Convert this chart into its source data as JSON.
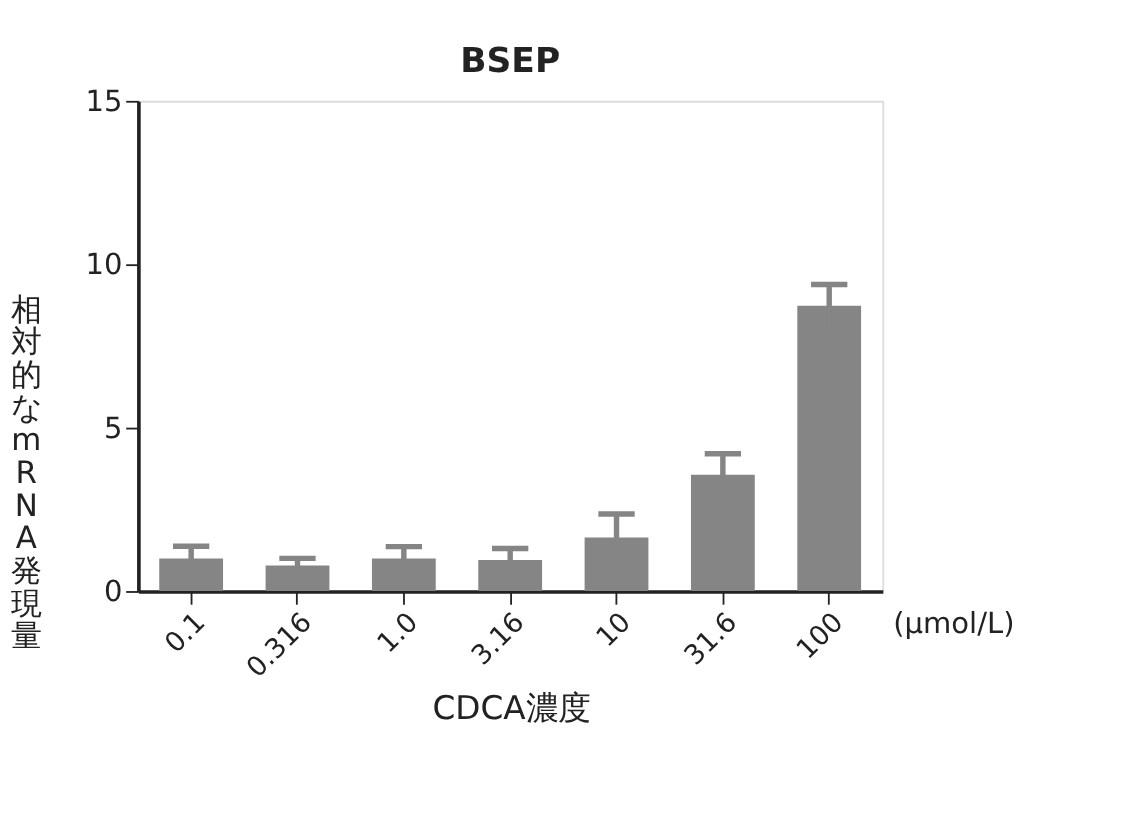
{
  "chart_data": {
    "type": "bar",
    "title": "BSEP",
    "xlabel": "CDCA濃度",
    "ylabel": "相対的なmRNA発現量",
    "categories": [
      "0.1",
      "0.316",
      "1.0",
      "3.16",
      "10",
      "31.6",
      "100"
    ],
    "values": [
      1.0,
      0.78,
      1.0,
      0.95,
      1.64,
      3.56,
      8.73
    ],
    "errors": [
      0.37,
      0.22,
      0.36,
      0.35,
      0.72,
      0.64,
      0.65
    ],
    "color": "#858585",
    "ylim": [
      0,
      15
    ],
    "yticks": [
      0,
      5,
      10,
      15
    ],
    "grid": false,
    "annotations": [
      "(μmol/L)"
    ]
  }
}
